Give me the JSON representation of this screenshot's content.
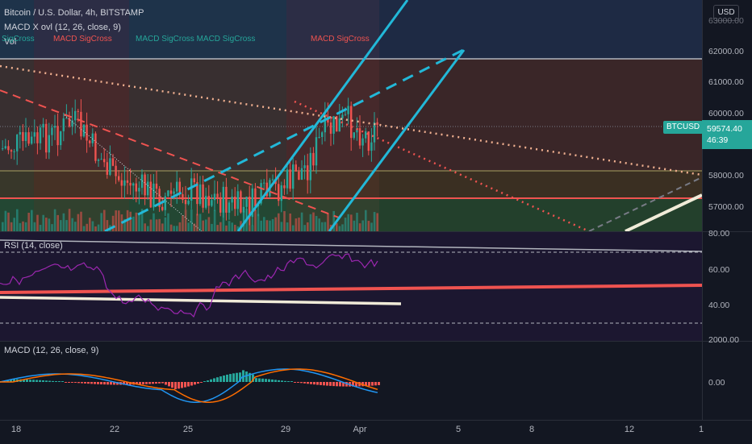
{
  "header": {
    "title": "Bitcoin / U.S. Dollar, 4h, BITSTAMP",
    "indicator_macd_ovl": "MACD X ovl (12, 26, close, 9)",
    "indicator_vol": "Vol"
  },
  "signals": [
    {
      "label": "SigCross",
      "color": "#26a69a"
    },
    {
      "label": "MACD SigCross",
      "color": "#ef5350"
    },
    {
      "label": "MACD SigCross MACD SigCross",
      "color": "#26a69a"
    },
    {
      "label": "MACD SigCross",
      "color": "#ef5350"
    }
  ],
  "price_axis": {
    "currency_button": "USD",
    "labels": [
      "63000.00",
      "62000.00",
      "61000.00",
      "60000.00",
      "58000.00",
      "57000.00"
    ],
    "ticker": "BTCUSD",
    "last_price": "59574.40",
    "countdown": "46:39"
  },
  "rsi": {
    "legend": "RSI (14, close)",
    "labels": [
      "80.00",
      "60.00",
      "40.00"
    ]
  },
  "macd": {
    "legend": "MACD (12, 26, close, 9)",
    "labels": [
      "2000.00",
      "0.00"
    ]
  },
  "time_axis": {
    "labels": [
      "18",
      "22",
      "25",
      "29",
      "Apr",
      "5",
      "8",
      "12",
      "1"
    ]
  },
  "colors": {
    "background": "#131722",
    "up": "#26a69a",
    "down": "#ef5350",
    "trend_cyan": "#22b8d8",
    "rsi_line": "#9c27b0"
  }
}
